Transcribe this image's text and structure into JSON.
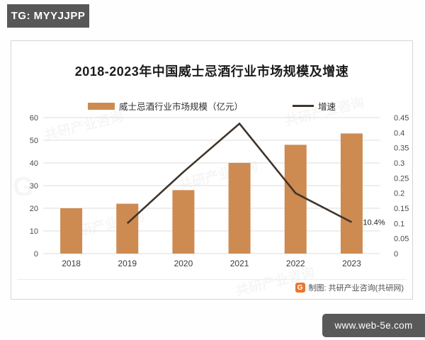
{
  "badge": {
    "label": "TG: MYYJJPP"
  },
  "site_watermark": {
    "label": "www.web-5e.com"
  },
  "footer": {
    "credit": "制图: 共研产业咨询(共研网)",
    "logo_letter": "G"
  },
  "ghost": {
    "text": "共研产业咨询",
    "logo_letter": "G"
  },
  "colors": {
    "badge_bg": "#575757",
    "site_watermark_bg": "#595959",
    "bar": "#CD8B51",
    "line": "#413429",
    "grid": "#DCDCDC",
    "logo_orange": "#E8772E",
    "title_text": "#1B1B1B",
    "axis_text": "#4A4A4A",
    "annotation_text": "#222222"
  },
  "chart_data": {
    "type": "bar",
    "subtype": "combo-bar-line",
    "title": "2018-2023年中国威士忌酒行业市场规模及增速",
    "categories": [
      "2018",
      "2019",
      "2020",
      "2021",
      "2022",
      "2023"
    ],
    "series": [
      {
        "name": "威士忌酒行业市场规模（亿元）",
        "type": "bar",
        "axis": "left",
        "values": [
          20,
          22,
          28,
          40,
          48,
          53
        ]
      },
      {
        "name": "增速",
        "type": "line",
        "axis": "right",
        "values": [
          null,
          0.1,
          0.27,
          0.43,
          0.2,
          0.104
        ]
      }
    ],
    "left_axis": {
      "min": 0,
      "max": 60,
      "step": 10
    },
    "right_axis": {
      "min": 0,
      "max": 0.45,
      "step": 0.05
    },
    "grid": true,
    "legend_position": "top",
    "annotation": {
      "text": "10.4%",
      "category": "2023",
      "series": "增速"
    }
  }
}
